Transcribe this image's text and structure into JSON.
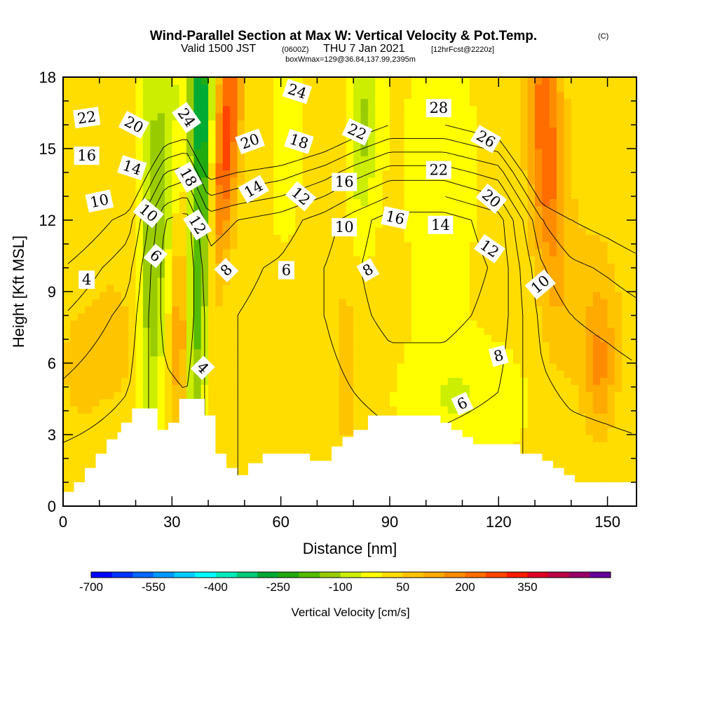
{
  "title": {
    "main": "Wind-Parallel Section at Max W: Vertical Velocity & Pot.Temp.",
    "copyright": "(C)",
    "valid_prefix": "Valid 1500 JST",
    "valid_utc": "(0600Z)",
    "valid_date": "THU 7 Jan 2021",
    "forecast": "[12hrFcst@2220z]",
    "boxinfo": "boxWmax=129@36.84,137.99,2395m"
  },
  "chart_data": {
    "type": "heatmap",
    "xlabel": "Distance [nm]",
    "ylabel": "Height [Kft MSL]",
    "xlim": [
      0,
      158
    ],
    "ylim": [
      0,
      18
    ],
    "x_ticks": [
      0,
      30,
      60,
      90,
      120,
      150
    ],
    "y_ticks": [
      0,
      3,
      6,
      9,
      12,
      15,
      18
    ],
    "colorbar": {
      "title": "Vertical Velocity [cm/s]",
      "min": -700,
      "max": 500,
      "step": 50,
      "tick_labels": [
        "-700",
        "-550",
        "-400",
        "-250",
        "-100",
        "50",
        "200",
        "350"
      ],
      "tick_values": [
        -700,
        -550,
        -400,
        -250,
        -100,
        50,
        200,
        350
      ],
      "colors": [
        "#0000ff",
        "#0033ff",
        "#0066ff",
        "#0099ff",
        "#00ccff",
        "#00ffff",
        "#00eebb",
        "#00cc77",
        "#00aa33",
        "#22aa11",
        "#55bb00",
        "#99cc00",
        "#ccee00",
        "#ffff00",
        "#ffdd00",
        "#ffc400",
        "#ffaa00",
        "#ff8c00",
        "#ff6c00",
        "#ff4400",
        "#ff1a00",
        "#dd0022",
        "#bb0044",
        "#990066",
        "#660099"
      ]
    },
    "terrain": [
      [
        0,
        0.6
      ],
      [
        3,
        0.6
      ],
      [
        3,
        1.0
      ],
      [
        6,
        1.0
      ],
      [
        6,
        1.6
      ],
      [
        9,
        1.6
      ],
      [
        9,
        2.2
      ],
      [
        12,
        2.2
      ],
      [
        12,
        2.8
      ],
      [
        15,
        2.8
      ],
      [
        15,
        3.1
      ],
      [
        16,
        3.1
      ],
      [
        16,
        3.5
      ],
      [
        19,
        3.5
      ],
      [
        19,
        4.1
      ],
      [
        26,
        4.1
      ],
      [
        26,
        3.2
      ],
      [
        29,
        3.2
      ],
      [
        29,
        3.5
      ],
      [
        32,
        3.5
      ],
      [
        32,
        4.5
      ],
      [
        39,
        4.5
      ],
      [
        39,
        3.8
      ],
      [
        42,
        3.8
      ],
      [
        42,
        2.2
      ],
      [
        45,
        2.2
      ],
      [
        45,
        1.6
      ],
      [
        48,
        1.6
      ],
      [
        48,
        1.3
      ],
      [
        51,
        1.3
      ],
      [
        51,
        1.8
      ],
      [
        55,
        1.8
      ],
      [
        55,
        2.2
      ],
      [
        68,
        2.2
      ],
      [
        68,
        1.9
      ],
      [
        74,
        1.9
      ],
      [
        74,
        2.5
      ],
      [
        77,
        2.5
      ],
      [
        77,
        2.9
      ],
      [
        80,
        2.9
      ],
      [
        80,
        3.2
      ],
      [
        84,
        3.2
      ],
      [
        84,
        3.8
      ],
      [
        104,
        3.8
      ],
      [
        104,
        3.5
      ],
      [
        107,
        3.5
      ],
      [
        107,
        3.2
      ],
      [
        110,
        3.2
      ],
      [
        110,
        2.9
      ],
      [
        113,
        2.9
      ],
      [
        113,
        2.6
      ],
      [
        126,
        2.6
      ],
      [
        126,
        2.2
      ],
      [
        132,
        2.2
      ],
      [
        132,
        1.9
      ],
      [
        135,
        1.9
      ],
      [
        135,
        1.6
      ],
      [
        138,
        1.6
      ],
      [
        138,
        1.3
      ],
      [
        141,
        1.3
      ],
      [
        141,
        1.0
      ],
      [
        158,
        1.0
      ]
    ],
    "w_features": [
      {
        "x": 24,
        "y": 10.5,
        "sx": 2.2,
        "sy": 8,
        "tilt": 0.05,
        "amp": -110
      },
      {
        "x": 28,
        "y": 14,
        "sx": 2.5,
        "sy": 5,
        "tilt": 0.3,
        "amp": -100
      },
      {
        "x": 38,
        "y": 12,
        "sx": 2.0,
        "sy": 7,
        "tilt": 0.2,
        "amp": -220
      },
      {
        "x": 37,
        "y": 17,
        "sx": 2.0,
        "sy": 2,
        "tilt": 0.0,
        "amp": -200
      },
      {
        "x": 45,
        "y": 15.5,
        "sx": 2.6,
        "sy": 3.8,
        "tilt": 0.4,
        "amp": 260
      },
      {
        "x": 32,
        "y": 7,
        "sx": 1.6,
        "sy": 3,
        "tilt": 0.0,
        "amp": 140
      },
      {
        "x": 5,
        "y": 6,
        "sx": 4,
        "sy": 1.8,
        "tilt": 0.0,
        "amp": 75
      },
      {
        "x": 14,
        "y": 7,
        "sx": 4,
        "sy": 2,
        "tilt": 0.0,
        "amp": 70
      },
      {
        "x": 62,
        "y": 16,
        "sx": 2.5,
        "sy": 3,
        "tilt": 0.2,
        "amp": -60
      },
      {
        "x": 83,
        "y": 16,
        "sx": 3,
        "sy": 3,
        "tilt": 0.3,
        "amp": -120
      },
      {
        "x": 72,
        "y": 14,
        "sx": 3,
        "sy": 3,
        "tilt": 0.3,
        "amp": 30
      },
      {
        "x": 78,
        "y": 6,
        "sx": 2,
        "sy": 4,
        "tilt": 0.0,
        "amp": 60
      },
      {
        "x": 104,
        "y": 14,
        "sx": 5,
        "sy": 5,
        "tilt": 0.0,
        "amp": -60
      },
      {
        "x": 133,
        "y": 15.5,
        "sx": 3.5,
        "sy": 4.5,
        "tilt": -0.3,
        "amp": 230
      },
      {
        "x": 148,
        "y": 5.8,
        "sx": 3,
        "sy": 2,
        "tilt": 0.0,
        "amp": 120
      },
      {
        "x": 145,
        "y": 8.5,
        "sx": 7,
        "sy": 3,
        "tilt": 0.0,
        "amp": 60
      },
      {
        "x": 110,
        "y": 4.5,
        "sx": 10,
        "sy": 1.5,
        "tilt": 0.0,
        "amp": -60
      },
      {
        "x": 62,
        "y": 6,
        "sx": 6,
        "sy": 3,
        "tilt": 0.0,
        "amp": 20
      }
    ],
    "w_background": 10,
    "theta_profile": [
      [
        0,
        20
      ],
      [
        2,
        21.5
      ],
      [
        4,
        23
      ],
      [
        6,
        24.5
      ],
      [
        8,
        26
      ],
      [
        10,
        28
      ],
      [
        12,
        31
      ],
      [
        14,
        37
      ],
      [
        16,
        44
      ],
      [
        18,
        52
      ]
    ],
    "theta_shift": [
      [
        0,
        0
      ],
      [
        18,
        -4
      ],
      [
        28,
        -13
      ],
      [
        34,
        -14
      ],
      [
        40,
        -8
      ],
      [
        48,
        -9
      ],
      [
        60,
        -10
      ],
      [
        72,
        -12
      ],
      [
        80,
        -14
      ],
      [
        90,
        -16
      ],
      [
        105,
        -16
      ],
      [
        120,
        -14
      ],
      [
        132,
        -5
      ],
      [
        140,
        -3
      ],
      [
        150,
        -2
      ],
      [
        158,
        -1
      ]
    ],
    "contour_levels": [
      4,
      6,
      8,
      10,
      12,
      14,
      16,
      18,
      20,
      22,
      24,
      26,
      28
    ],
    "contour_labels": [
      {
        "text": "22",
        "x": 6.5,
        "y": 16.3,
        "rot": -8
      },
      {
        "text": "16",
        "x": 6.5,
        "y": 14.7,
        "rot": 0
      },
      {
        "text": "10",
        "x": 10,
        "y": 12.8,
        "rot": -12
      },
      {
        "text": "4",
        "x": 6.5,
        "y": 9.5,
        "rot": 0
      },
      {
        "text": "20",
        "x": 19.5,
        "y": 16.0,
        "rot": 28
      },
      {
        "text": "14",
        "x": 19,
        "y": 14.2,
        "rot": 18
      },
      {
        "text": "10",
        "x": 23.5,
        "y": 12.3,
        "rot": 40
      },
      {
        "text": "6",
        "x": 25.5,
        "y": 10.5,
        "rot": 40
      },
      {
        "text": "24",
        "x": 34,
        "y": 16.3,
        "rot": 55
      },
      {
        "text": "18",
        "x": 34.5,
        "y": 13.8,
        "rot": 60
      },
      {
        "text": "12",
        "x": 37,
        "y": 11.8,
        "rot": 58
      },
      {
        "text": "4",
        "x": 38.5,
        "y": 5.8,
        "rot": 45
      },
      {
        "text": "8",
        "x": 45,
        "y": 9.9,
        "rot": -45
      },
      {
        "text": "20",
        "x": 51.5,
        "y": 15.3,
        "rot": -20
      },
      {
        "text": "14",
        "x": 52.5,
        "y": 13.3,
        "rot": -30
      },
      {
        "text": "6",
        "x": 61.5,
        "y": 9.9,
        "rot": 0
      },
      {
        "text": "24",
        "x": 64.5,
        "y": 17.4,
        "rot": 18
      },
      {
        "text": "18",
        "x": 65,
        "y": 15.3,
        "rot": 18
      },
      {
        "text": "12",
        "x": 65.5,
        "y": 13.0,
        "rot": 40
      },
      {
        "text": "22",
        "x": 81,
        "y": 15.7,
        "rot": 25
      },
      {
        "text": "16",
        "x": 77.5,
        "y": 13.6,
        "rot": 0
      },
      {
        "text": "10",
        "x": 77.5,
        "y": 11.7,
        "rot": 0
      },
      {
        "text": "8",
        "x": 84,
        "y": 9.9,
        "rot": -30
      },
      {
        "text": "16",
        "x": 91.5,
        "y": 12.1,
        "rot": 12
      },
      {
        "text": "28",
        "x": 103.5,
        "y": 16.7,
        "rot": 0
      },
      {
        "text": "22",
        "x": 103.5,
        "y": 14.1,
        "rot": 0
      },
      {
        "text": "14",
        "x": 104,
        "y": 11.8,
        "rot": 0
      },
      {
        "text": "26",
        "x": 116.5,
        "y": 15.4,
        "rot": 30
      },
      {
        "text": "20",
        "x": 118,
        "y": 12.9,
        "rot": 40
      },
      {
        "text": "12",
        "x": 117.5,
        "y": 10.8,
        "rot": 35
      },
      {
        "text": "10",
        "x": 131.5,
        "y": 9.3,
        "rot": -40
      },
      {
        "text": "8",
        "x": 120,
        "y": 6.3,
        "rot": -15
      },
      {
        "text": "6",
        "x": 110,
        "y": 4.3,
        "rot": -25
      }
    ],
    "grid": false
  }
}
